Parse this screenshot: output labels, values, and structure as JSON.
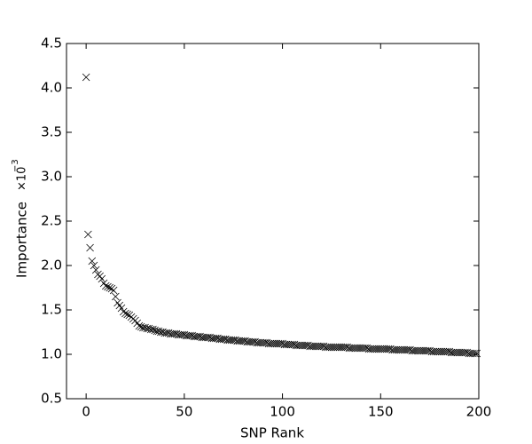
{
  "chart_data": {
    "type": "scatter",
    "x_label": "SNP Rank",
    "y_label": "Importance",
    "y_multiplier_base": "×10",
    "y_multiplier_exponent": "−3",
    "color": "#000000",
    "marker": "x",
    "xlim": [
      -10,
      200
    ],
    "xticks": [
      0,
      50,
      100,
      150,
      200
    ],
    "ylim": [
      0.5,
      4.5
    ],
    "yticks": [
      0.5,
      {
        "value": 1.0,
        "label": "1.0"
      },
      1.5,
      {
        "value": 2.0,
        "label": "2.0"
      },
      2.5,
      {
        "value": 3.0,
        "label": "3.0"
      },
      3.5,
      {
        "value": 4.0,
        "label": "4.0"
      },
      4.5
    ],
    "x": [
      0,
      1,
      2,
      3,
      4,
      5,
      6,
      7,
      8,
      9,
      10,
      11,
      12,
      13,
      14,
      15,
      16,
      17,
      18,
      19,
      20,
      21,
      22,
      23,
      24,
      25,
      26,
      27,
      28,
      29,
      30,
      31,
      32,
      33,
      34,
      35,
      36,
      37,
      38,
      39,
      40,
      41,
      42,
      43,
      44,
      45,
      46,
      47,
      48,
      49,
      50,
      51,
      52,
      53,
      54,
      55,
      56,
      57,
      58,
      59,
      60,
      61,
      62,
      63,
      64,
      65,
      66,
      67,
      68,
      69,
      70,
      71,
      72,
      73,
      74,
      75,
      76,
      77,
      78,
      79,
      80,
      81,
      82,
      83,
      84,
      85,
      86,
      87,
      88,
      89,
      90,
      91,
      92,
      93,
      94,
      95,
      96,
      97,
      98,
      99,
      100,
      101,
      102,
      103,
      104,
      105,
      106,
      107,
      108,
      109,
      110,
      111,
      112,
      113,
      114,
      115,
      116,
      117,
      118,
      119,
      120,
      121,
      122,
      123,
      124,
      125,
      126,
      127,
      128,
      129,
      130,
      131,
      132,
      133,
      134,
      135,
      136,
      137,
      138,
      139,
      140,
      141,
      142,
      143,
      144,
      145,
      146,
      147,
      148,
      149,
      150,
      151,
      152,
      153,
      154,
      155,
      156,
      157,
      158,
      159,
      160,
      161,
      162,
      163,
      164,
      165,
      166,
      167,
      168,
      169,
      170,
      171,
      172,
      173,
      174,
      175,
      176,
      177,
      178,
      179,
      180,
      181,
      182,
      183,
      184,
      185,
      186,
      187,
      188,
      189,
      190,
      191,
      192,
      193,
      194,
      195,
      196,
      197,
      198,
      199
    ],
    "values": [
      4.12,
      2.35,
      2.2,
      2.05,
      2.0,
      1.95,
      1.9,
      1.88,
      1.85,
      1.8,
      1.77,
      1.76,
      1.75,
      1.74,
      1.72,
      1.65,
      1.58,
      1.55,
      1.52,
      1.48,
      1.46,
      1.45,
      1.44,
      1.42,
      1.4,
      1.38,
      1.35,
      1.32,
      1.31,
      1.3,
      1.3,
      1.29,
      1.29,
      1.28,
      1.28,
      1.27,
      1.26,
      1.26,
      1.25,
      1.25,
      1.24,
      1.24,
      1.24,
      1.23,
      1.23,
      1.23,
      1.23,
      1.22,
      1.22,
      1.22,
      1.22,
      1.21,
      1.21,
      1.21,
      1.21,
      1.2,
      1.2,
      1.2,
      1.2,
      1.19,
      1.19,
      1.19,
      1.19,
      1.19,
      1.18,
      1.18,
      1.18,
      1.18,
      1.17,
      1.17,
      1.17,
      1.17,
      1.16,
      1.16,
      1.16,
      1.16,
      1.16,
      1.15,
      1.15,
      1.15,
      1.15,
      1.15,
      1.14,
      1.14,
      1.14,
      1.14,
      1.14,
      1.13,
      1.13,
      1.13,
      1.13,
      1.13,
      1.13,
      1.12,
      1.12,
      1.12,
      1.12,
      1.12,
      1.12,
      1.12,
      1.12,
      1.11,
      1.11,
      1.11,
      1.11,
      1.11,
      1.11,
      1.1,
      1.1,
      1.1,
      1.1,
      1.1,
      1.1,
      1.1,
      1.09,
      1.09,
      1.09,
      1.09,
      1.09,
      1.09,
      1.09,
      1.09,
      1.08,
      1.08,
      1.08,
      1.08,
      1.08,
      1.08,
      1.08,
      1.08,
      1.08,
      1.08,
      1.08,
      1.08,
      1.07,
      1.07,
      1.07,
      1.07,
      1.07,
      1.07,
      1.07,
      1.07,
      1.07,
      1.07,
      1.06,
      1.06,
      1.06,
      1.06,
      1.06,
      1.06,
      1.06,
      1.06,
      1.06,
      1.06,
      1.06,
      1.06,
      1.05,
      1.05,
      1.05,
      1.05,
      1.05,
      1.05,
      1.05,
      1.05,
      1.05,
      1.05,
      1.04,
      1.04,
      1.04,
      1.04,
      1.04,
      1.04,
      1.04,
      1.04,
      1.04,
      1.04,
      1.03,
      1.03,
      1.03,
      1.03,
      1.03,
      1.03,
      1.03,
      1.03,
      1.03,
      1.03,
      1.02,
      1.02,
      1.02,
      1.02,
      1.02,
      1.02,
      1.02,
      1.02,
      1.02,
      1.01,
      1.01,
      1.01,
      1.01,
      1.01
    ]
  }
}
